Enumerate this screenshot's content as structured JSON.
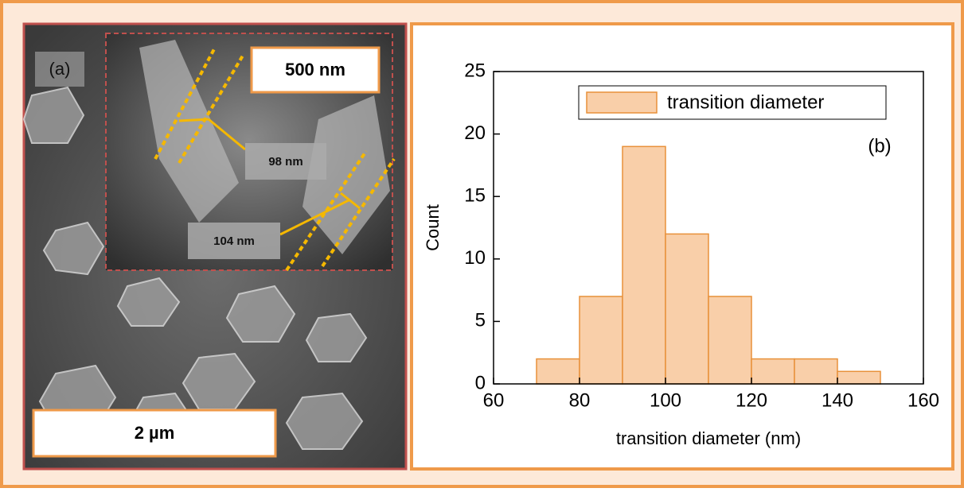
{
  "image_panel": {
    "panel_label": "(a)",
    "inset_scale": "500 nm",
    "measure_1": "98 nm",
    "measure_2": "104 nm",
    "main_scale": "2 µm"
  },
  "chart_data": {
    "type": "histogram",
    "annotation": "(b)",
    "x_label": "transition diameter (nm)",
    "y_label": "Count",
    "bins": [
      70,
      80,
      90,
      100,
      110,
      120,
      130,
      140,
      150
    ],
    "series": [
      {
        "name": "transition diameter",
        "color": "#f9cfa9",
        "edgecolor": "#e8913a",
        "values": [
          2,
          7,
          19,
          12,
          7,
          2,
          2,
          1
        ]
      }
    ],
    "xlim": [
      60,
      160
    ],
    "xticks": [
      60,
      80,
      100,
      120,
      140,
      160
    ],
    "ylim": [
      0,
      25
    ],
    "yticks": [
      0,
      5,
      10,
      15,
      20,
      25
    ],
    "legend": "upper right"
  }
}
